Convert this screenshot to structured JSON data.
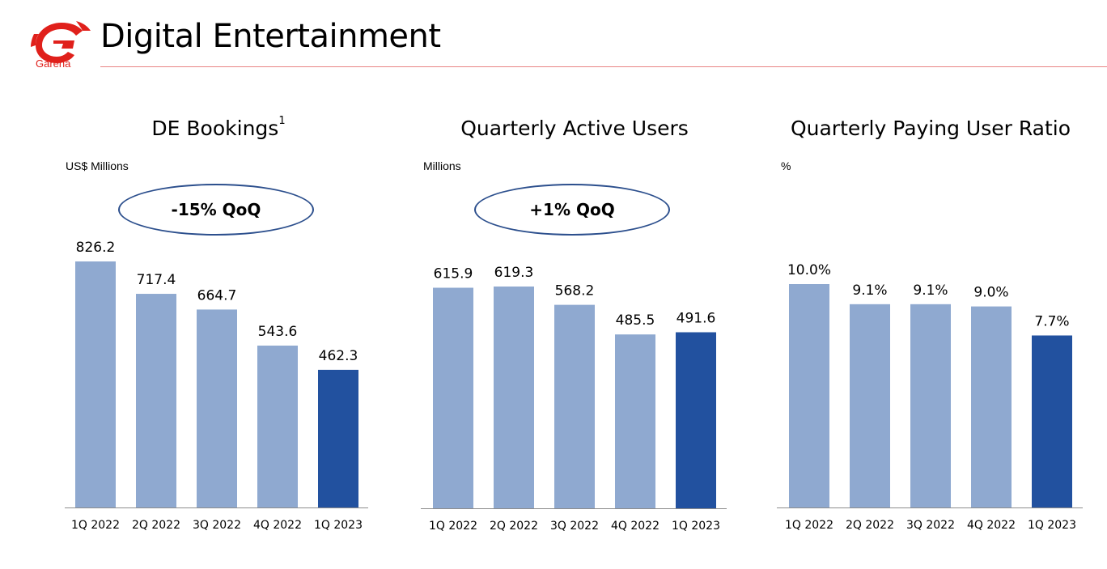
{
  "header": {
    "logo_text": "Garena",
    "title": "Digital Entertainment"
  },
  "colors": {
    "bar_light": "#8fa9d0",
    "bar_dark": "#22519f",
    "callout_border": "#2c4f8d",
    "header_rule": "#e88585",
    "logo_red": "#e0201b"
  },
  "chart_data": [
    {
      "type": "bar",
      "title": "DE Bookings",
      "title_superscript": "1",
      "ylabel": "US$ Millions",
      "callout": "-15% QoQ",
      "categories": [
        "1Q 2022",
        "2Q 2022",
        "3Q 2022",
        "4Q 2022",
        "1Q 2023"
      ],
      "values": [
        826.2,
        717.4,
        664.7,
        543.6,
        462.3
      ],
      "labels": [
        "826.2",
        "717.4",
        "664.7",
        "543.6",
        "462.3"
      ],
      "highlight_index": 4,
      "ylim": [
        0,
        826.2
      ]
    },
    {
      "type": "bar",
      "title": "Quarterly Active Users",
      "title_superscript": "",
      "ylabel": "Millions",
      "callout": "+1% QoQ",
      "categories": [
        "1Q 2022",
        "2Q 2022",
        "3Q 2022",
        "4Q 2022",
        "1Q 2023"
      ],
      "values": [
        615.9,
        619.3,
        568.2,
        485.5,
        491.6
      ],
      "labels": [
        "615.9",
        "619.3",
        "568.2",
        "485.5",
        "491.6"
      ],
      "highlight_index": 4,
      "ylim": [
        0,
        619.3
      ]
    },
    {
      "type": "bar",
      "title": "Quarterly Paying User Ratio",
      "title_superscript": "",
      "ylabel": "%",
      "callout": "",
      "categories": [
        "1Q 2022",
        "2Q 2022",
        "3Q 2022",
        "4Q 2022",
        "1Q 2023"
      ],
      "values": [
        10.0,
        9.1,
        9.1,
        9.0,
        7.7
      ],
      "labels": [
        "10.0%",
        "9.1%",
        "9.1%",
        "9.0%",
        "7.7%"
      ],
      "highlight_index": 4,
      "ylim": [
        0,
        10.0
      ]
    }
  ]
}
